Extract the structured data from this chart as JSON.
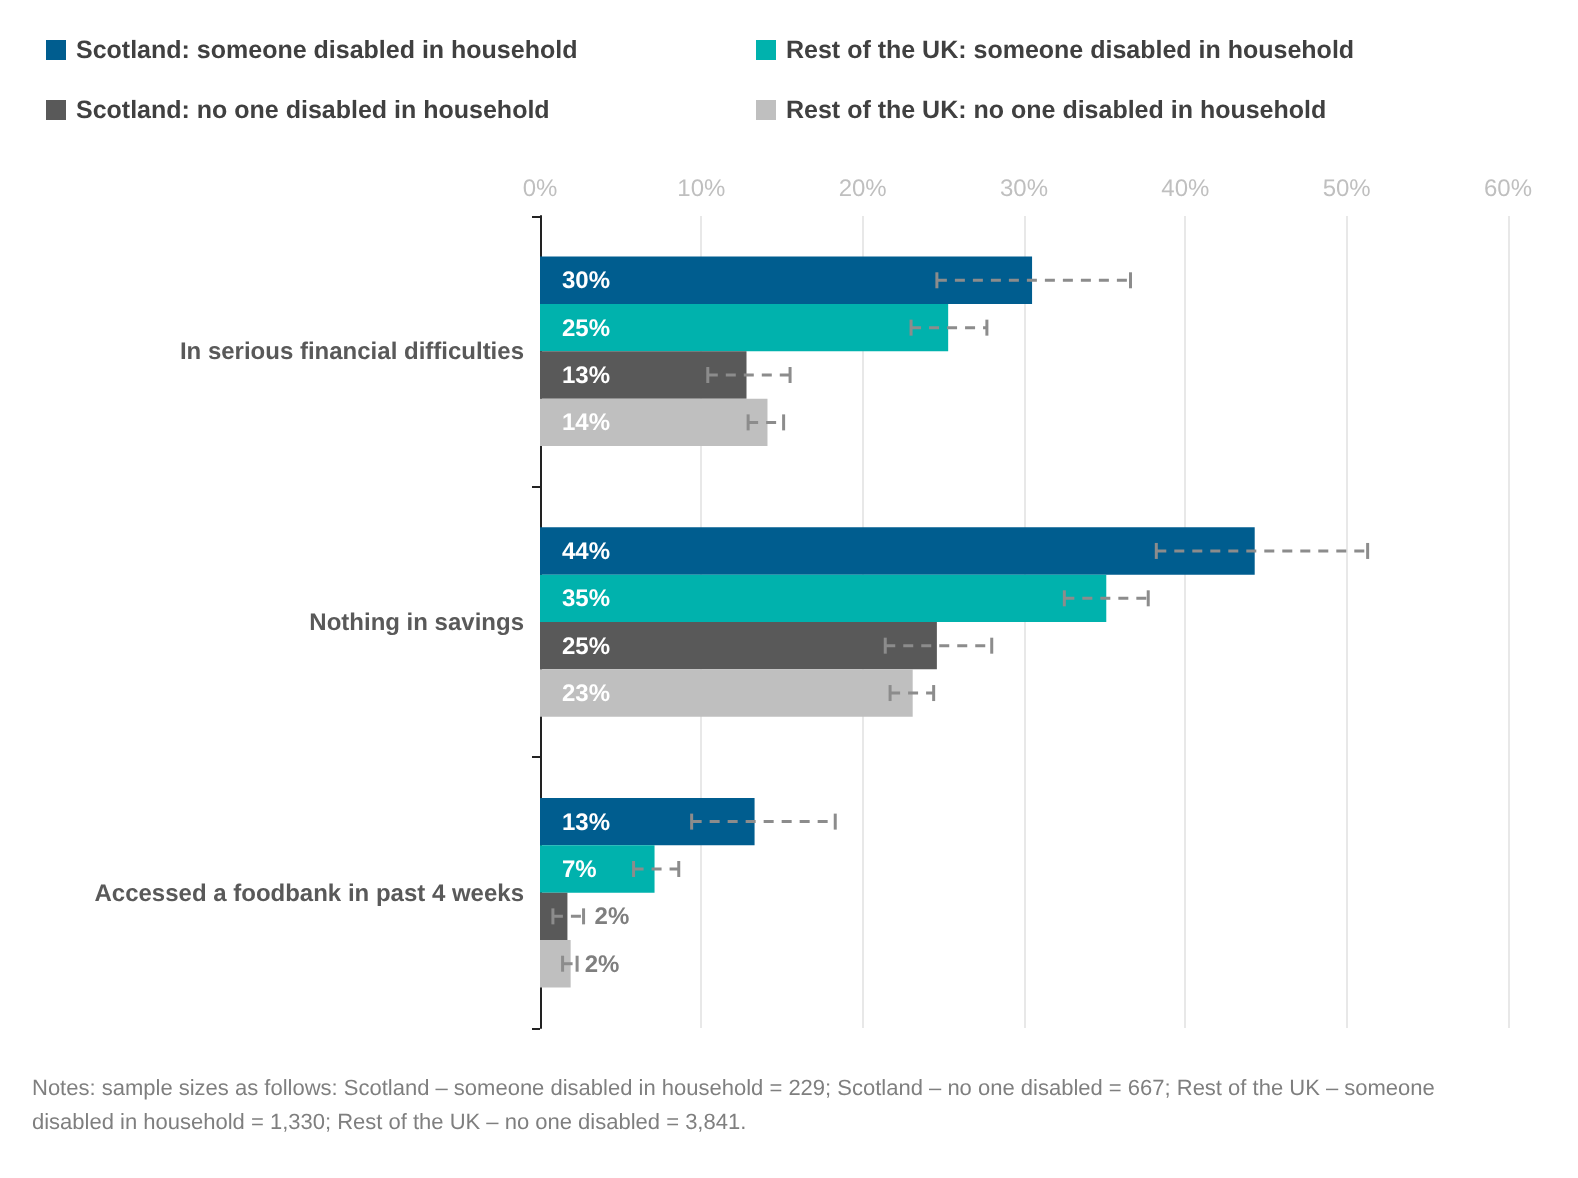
{
  "chart_data": {
    "type": "bar",
    "orientation": "horizontal",
    "categories": [
      "In serious financial difficulties",
      "Nothing in savings",
      "Accessed a foodbank in past 4 weeks"
    ],
    "series": [
      {
        "name": "Scotland: someone disabled in household",
        "color": "#005d8f",
        "values": [
          30.5,
          44.3,
          13.3
        ],
        "value_labels": [
          "30%",
          "44%",
          "13%"
        ],
        "errors": [
          [
            24.6,
            36.6
          ],
          [
            38.2,
            51.3
          ],
          [
            9.4,
            18.3
          ]
        ]
      },
      {
        "name": "Rest of the UK: someone disabled in household",
        "color": "#00b2ad",
        "values": [
          25.3,
          35.1,
          7.1
        ],
        "value_labels": [
          "25%",
          "35%",
          "7%"
        ],
        "errors": [
          [
            23,
            27.7
          ],
          [
            32.5,
            37.7
          ],
          [
            5.8,
            8.6
          ]
        ]
      },
      {
        "name": "Scotland: no one disabled in household",
        "color": "#595959",
        "values": [
          12.8,
          24.6,
          1.7
        ],
        "value_labels": [
          "13%",
          "25%",
          "2%"
        ],
        "errors": [
          [
            10.4,
            15.5
          ],
          [
            21.4,
            28
          ],
          [
            0.8,
            2.7
          ]
        ]
      },
      {
        "name": "Rest of the UK: no one disabled in household",
        "color": "#bfbfbf",
        "values": [
          14.1,
          23.1,
          1.9
        ],
        "value_labels": [
          "14%",
          "23%",
          "2%"
        ],
        "errors": [
          [
            12.9,
            15.1
          ],
          [
            21.7,
            24.4
          ],
          [
            1.4,
            2.3
          ]
        ]
      }
    ],
    "xlim": [
      0,
      60
    ],
    "xticks": [
      {
        "value": 0,
        "label": "0%"
      },
      {
        "value": 10,
        "label": "10%"
      },
      {
        "value": 20,
        "label": "20%"
      },
      {
        "value": 30,
        "label": "30%"
      },
      {
        "value": 40,
        "label": "40%"
      },
      {
        "value": 50,
        "label": "50%"
      },
      {
        "value": 60,
        "label": "60%"
      }
    ],
    "grid": "x",
    "legend": "top",
    "annotations": [
      "Notes: sample sizes as follows: Scotland – someone disabled in household = 229; Scotland – no one disabled = 667; Rest of the UK – someone disabled in household = 1,330; Rest of the UK – no one disabled = 3,841."
    ]
  }
}
